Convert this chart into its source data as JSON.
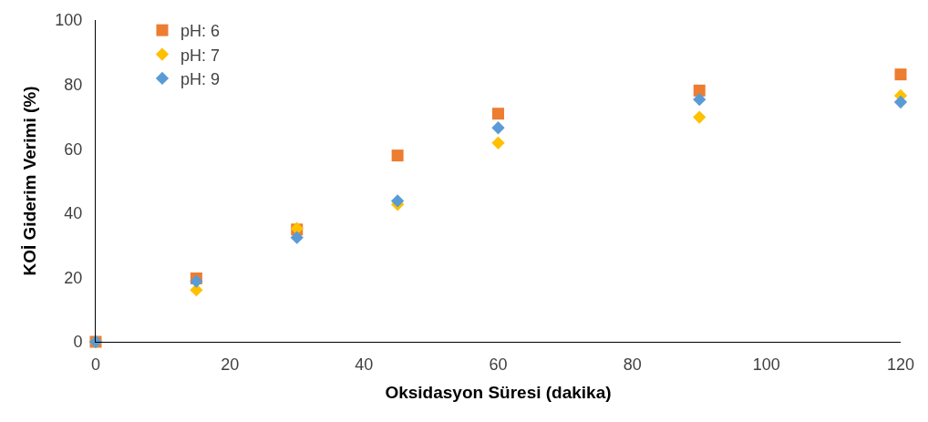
{
  "chart_data": {
    "type": "scatter",
    "xlabel": "Oksidasyon Süresi (dakika)",
    "ylabel": "KOİ Giderim Verimi (%)",
    "x": [
      0,
      15,
      30,
      45,
      60,
      90,
      120
    ],
    "series": [
      {
        "name": "pH: 6",
        "color": "#ed7d31",
        "marker": "square",
        "values": [
          0,
          19.7,
          34.9,
          57.9,
          70.9,
          78.1,
          83.1
        ]
      },
      {
        "name": "pH: 7",
        "color": "#ffc000",
        "marker": "diamond",
        "values": [
          0,
          16.1,
          35.2,
          42.7,
          61.8,
          69.8,
          76.5
        ]
      },
      {
        "name": "pH: 9",
        "color": "#5b9bd5",
        "marker": "diamond",
        "values": [
          0,
          18.8,
          32.4,
          43.8,
          66.5,
          75.3,
          74.5
        ]
      }
    ],
    "xlim": [
      0,
      120
    ],
    "xticks": [
      0,
      20,
      40,
      60,
      80,
      100,
      120
    ],
    "ylim": [
      0,
      100
    ],
    "yticks": [
      0,
      20,
      40,
      60,
      80,
      100
    ],
    "legend": "top left"
  }
}
